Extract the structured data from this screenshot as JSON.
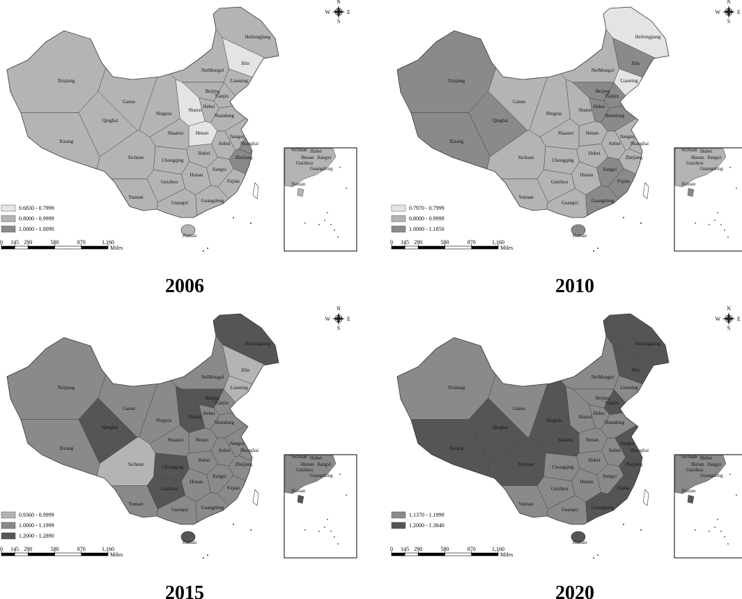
{
  "provinces": [
    "Heilongjiang",
    "Jilin",
    "Liaoning",
    "NeiMongol",
    "Xinjiang",
    "Gansu",
    "Qinghai",
    "Xizang",
    "Sichuan",
    "Yunnan",
    "Guizhou",
    "Guangxi",
    "Guangdong",
    "Hunan",
    "Hubei",
    "Henan",
    "Shanxi",
    "Shaanxi",
    "Ningxia",
    "Hebei",
    "Beijing",
    "Tianjin",
    "Shandong",
    "Jiangsu",
    "Anhui",
    "Zhejiang",
    "Jiangxi",
    "Fujian",
    "Chongqing",
    "Shanghai",
    "Hainan"
  ],
  "inset_labels": [
    "Sichuan",
    "Hubei",
    "Hunan",
    "Guizhou",
    "Jiangxi",
    "Guangdong",
    "Hainan"
  ],
  "compass": {
    "n": "N",
    "s": "S",
    "w": "W",
    "e": "E"
  },
  "scale": {
    "ticks": [
      0,
      145,
      290,
      580,
      870,
      {
        "value": 1160,
        "label": "1,160"
      }
    ],
    "unit": "Miles"
  },
  "panels": [
    {
      "year": "2006",
      "legend": [
        {
          "label": "0.6830 - 0.7999",
          "color": "#e4e4e4"
        },
        {
          "label": "0.8000 - 0.9999",
          "color": "#b4b4b4"
        },
        {
          "label": "1.0000 - 1.0090",
          "color": "#8a8a8a"
        }
      ],
      "classes": [
        1,
        0,
        1,
        1,
        1,
        1,
        1,
        1,
        1,
        1,
        1,
        1,
        1,
        1,
        1,
        0,
        0,
        1,
        1,
        1,
        1,
        1,
        1,
        1,
        1,
        2,
        1,
        1,
        1,
        2,
        1
      ]
    },
    {
      "year": "2010",
      "legend": [
        {
          "label": "0.7970 - 0.7999",
          "color": "#e4e4e4"
        },
        {
          "label": "0.8000 - 0.9999",
          "color": "#b4b4b4"
        },
        {
          "label": "1.0000 - 1.1850",
          "color": "#8a8a8a"
        }
      ],
      "classes": [
        0,
        2,
        0,
        1,
        2,
        1,
        2,
        2,
        1,
        1,
        1,
        1,
        2,
        1,
        1,
        1,
        1,
        1,
        1,
        2,
        2,
        2,
        2,
        1,
        1,
        1,
        2,
        2,
        1,
        1,
        2
      ]
    },
    {
      "year": "2015",
      "legend": [
        {
          "label": "0.9360 - 0.9999",
          "color": "#b4b4b4"
        },
        {
          "label": "1.0000 - 1.1999",
          "color": "#8a8a8a"
        },
        {
          "label": "1.2000 - 1.2890",
          "color": "#555555"
        }
      ],
      "classes": [
        2,
        0,
        0,
        1,
        1,
        1,
        2,
        1,
        0,
        1,
        2,
        1,
        1,
        1,
        1,
        1,
        2,
        1,
        1,
        1,
        2,
        1,
        1,
        1,
        1,
        1,
        1,
        1,
        2,
        1,
        2
      ]
    },
    {
      "year": "2020",
      "legend": [
        {
          "label": "1.1370 - 1.1999",
          "color": "#8a8a8a"
        },
        {
          "label": "1.2000 - 1.3840",
          "color": "#555555"
        }
      ],
      "classes": [
        1,
        1,
        0,
        0,
        0,
        0,
        1,
        1,
        1,
        0,
        0,
        0,
        1,
        0,
        0,
        0,
        0,
        1,
        1,
        0,
        0,
        1,
        0,
        1,
        0,
        1,
        0,
        1,
        0,
        1,
        1
      ]
    }
  ]
}
